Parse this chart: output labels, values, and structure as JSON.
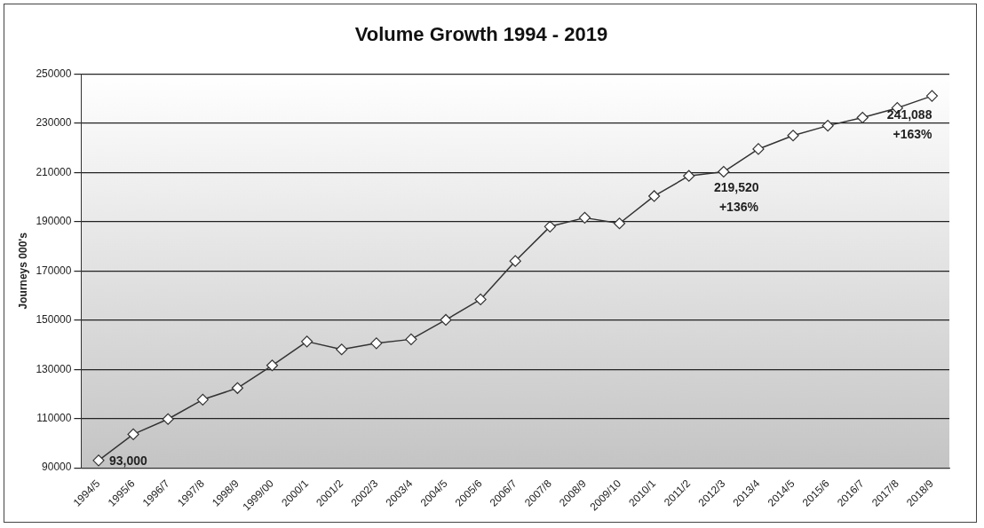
{
  "chart_data": {
    "type": "line",
    "title": "Volume Growth 1994 - 2019",
    "ylabel": "Journeys 000's",
    "categories": [
      "1994/5",
      "1995/6",
      "1996/7",
      "1997/8",
      "1998/9",
      "1999/00",
      "2000/1",
      "2001/2",
      "2002/3",
      "2003/4",
      "2004/5",
      "2005/6",
      "2006/7",
      "2007/8",
      "2008/9",
      "2009/10",
      "2010/1",
      "2011/2",
      "2012/3",
      "2013/4",
      "2014/5",
      "2015/6",
      "2016/7",
      "2017/8",
      "2018/9"
    ],
    "series": [
      {
        "color": "#333333",
        "values": [
          93000,
          103600,
          109800,
          117700,
          122400,
          131600,
          141300,
          138100,
          140600,
          142200,
          150100,
          158400,
          174000,
          188000,
          191600,
          189300,
          200400,
          208600,
          210300,
          219520,
          225000,
          229000,
          232300,
          236200,
          241088
        ]
      }
    ],
    "ylim": [
      90000,
      250000
    ],
    "yticks": [
      90000,
      110000,
      130000,
      150000,
      170000,
      190000,
      210000,
      230000,
      250000
    ],
    "grid": "y",
    "marker": "diamond",
    "line_style": "solid",
    "legend": false,
    "annotations": [
      {
        "text": "93,000",
        "x": "1994/5",
        "y": 93000
      },
      {
        "text": "219,520\n+136%",
        "x": "2013/4",
        "y": 219520
      },
      {
        "text": "241,088\n+163%",
        "x": "2018/9",
        "y": 241088
      }
    ]
  }
}
